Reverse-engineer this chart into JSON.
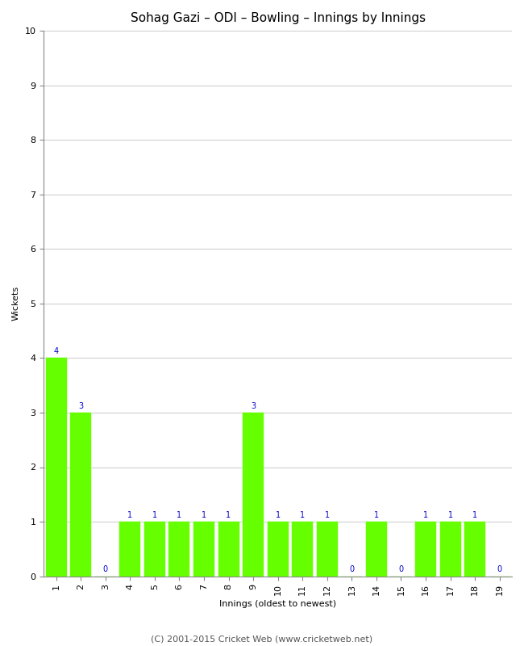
{
  "title": "Sohag Gazi – ODI – Bowling – Innings by Innings",
  "xlabel": "Innings (oldest to newest)",
  "ylabel": "Wickets",
  "categories": [
    1,
    2,
    3,
    4,
    5,
    6,
    7,
    8,
    9,
    10,
    11,
    12,
    13,
    14,
    15,
    16,
    17,
    18,
    19
  ],
  "values": [
    4,
    3,
    0,
    1,
    1,
    1,
    1,
    1,
    3,
    1,
    1,
    1,
    0,
    1,
    0,
    1,
    1,
    1,
    0
  ],
  "bar_color": "#66ff00",
  "bar_edge_color": "#66ff00",
  "ylim": [
    0,
    10
  ],
  "yticks": [
    0,
    1,
    2,
    3,
    4,
    5,
    6,
    7,
    8,
    9,
    10
  ],
  "label_color": "#0000cc",
  "label_fontsize": 7,
  "title_fontsize": 11,
  "axis_label_fontsize": 8,
  "tick_fontsize": 8,
  "background_color": "#ffffff",
  "grid_color": "#d0d0d0",
  "footer_text": "(C) 2001-2015 Cricket Web (www.cricketweb.net)",
  "footer_fontsize": 8,
  "footer_color": "#555555",
  "bar_width": 0.85
}
